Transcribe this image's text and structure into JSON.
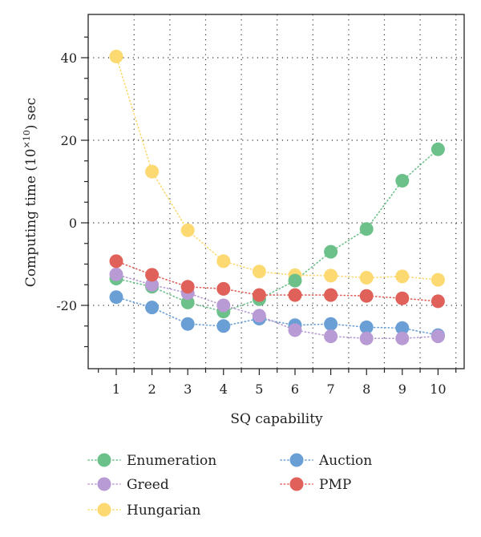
{
  "chart_data": {
    "type": "scatter",
    "xlabel": "SQ capability",
    "ylabel": "Computing time (10",
    "ylabel_sup": "×10",
    "ylabel_suffix": ") sec",
    "x": [
      1,
      2,
      3,
      4,
      5,
      6,
      7,
      8,
      9,
      10
    ],
    "xlim": [
      0.5,
      10.5
    ],
    "ylim": [
      -35,
      50
    ],
    "x_ticks": [
      1,
      2,
      3,
      4,
      5,
      6,
      7,
      8,
      9,
      10
    ],
    "y_ticks": [
      -20,
      0,
      20,
      40
    ],
    "grid": true,
    "legend_position": "bottom",
    "series": [
      {
        "name": "Enumeration",
        "color": "#6cc18a",
        "values": [
          -13.5,
          -15.5,
          -19.3,
          -21.5,
          -18.5,
          -14,
          -7,
          -1.5,
          10.2,
          17.8
        ]
      },
      {
        "name": "Auction",
        "color": "#6a9fd6",
        "values": [
          -18,
          -20.5,
          -24.5,
          -25,
          -23.2,
          -24.8,
          -24.5,
          -25.3,
          -25.5,
          -27.2
        ]
      },
      {
        "name": "Greed",
        "color": "#b89ad4",
        "values": [
          -12.5,
          -15,
          -17,
          -20,
          -22.5,
          -26,
          -27.5,
          -28,
          -28,
          -27.5
        ]
      },
      {
        "name": "PMP",
        "color": "#e0605a",
        "values": [
          -9.3,
          -12.6,
          -15.5,
          -16,
          -17.5,
          -17.5,
          -17.5,
          -17.7,
          -18.3,
          -19
        ]
      },
      {
        "name": "Hungarian",
        "color": "#fcd971",
        "values": [
          40.3,
          12.4,
          -1.8,
          -9.3,
          -11.8,
          -12.7,
          -12.8,
          -13.3,
          -13,
          -13.8
        ]
      }
    ],
    "draw_order": [
      "Hungarian",
      "Enumeration",
      "Auction",
      "Greed",
      "PMP"
    ]
  }
}
